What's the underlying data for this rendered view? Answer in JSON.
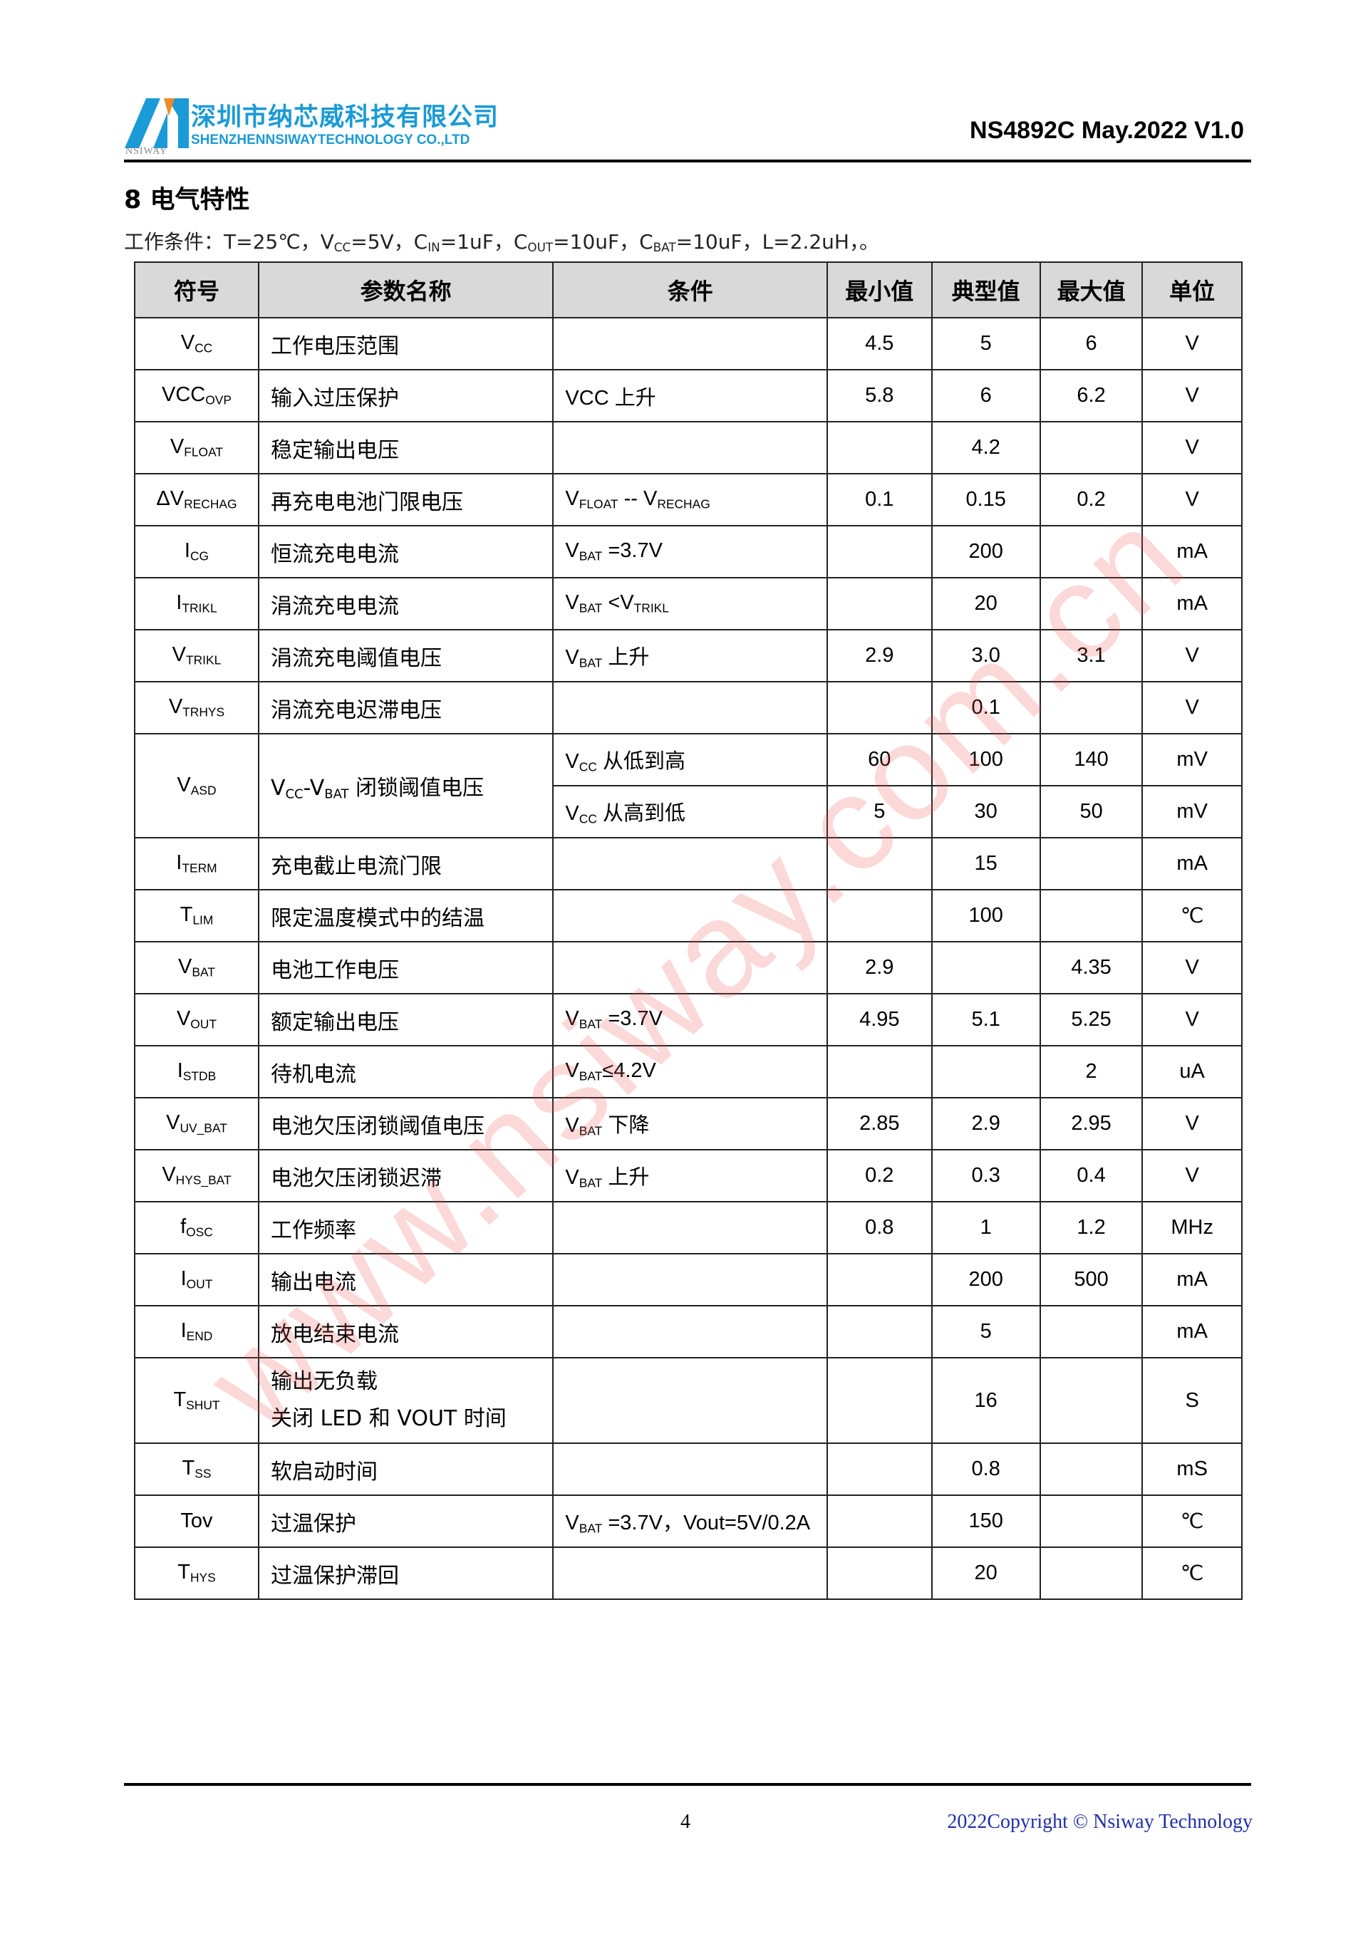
{
  "header": {
    "company_cn": "深圳市纳芯威科技有限公司",
    "company_en": "SHENZHENNSIWAYTECHNOLOGY CO.,LTD",
    "logo_text": "NSIWAY",
    "doc_id": "NS4892C May.2022 V1.0"
  },
  "section": {
    "title": "8 电气特性",
    "conditions_prefix": "工作条件：T=25℃，V",
    "conditions_parts": [
      {
        "t": "工作条件：T=25℃，V"
      },
      {
        "s": "CC"
      },
      {
        "t": "=5V，C"
      },
      {
        "s": "IN"
      },
      {
        "t": "=1uF，C"
      },
      {
        "s": "OUT"
      },
      {
        "t": "=10uF，C"
      },
      {
        "s": "BAT"
      },
      {
        "t": "=10uF，L=2.2uH，。"
      }
    ]
  },
  "table": {
    "headers": [
      "符号",
      "参数名称",
      "条件",
      "最小值",
      "典型值",
      "最大值",
      "单位"
    ],
    "rows": [
      {
        "sym": [
          {
            "t": "V"
          },
          {
            "s": "CC"
          }
        ],
        "name": [
          "工作电压范围"
        ],
        "cond": [],
        "min": "4.5",
        "typ": "5",
        "max": "6",
        "unit": "V"
      },
      {
        "sym": [
          {
            "t": "VCC"
          },
          {
            "s": "OVP"
          }
        ],
        "name": [
          "输入过压保护"
        ],
        "cond": [
          {
            "t": "VCC 上升"
          }
        ],
        "min": "5.8",
        "typ": "6",
        "max": "6.2",
        "unit": "V"
      },
      {
        "sym": [
          {
            "t": "V"
          },
          {
            "s": "FLOAT"
          }
        ],
        "name": [
          "稳定输出电压"
        ],
        "cond": [],
        "min": "",
        "typ": "4.2",
        "max": "",
        "unit": "V"
      },
      {
        "sym": [
          {
            "t": "ΔV"
          },
          {
            "s": "RECHAG"
          }
        ],
        "name": [
          "再充电电池门限电压"
        ],
        "cond": [
          {
            "t": "V"
          },
          {
            "s": "FLOAT"
          },
          {
            "t": " -- V"
          },
          {
            "s": "RECHAG"
          }
        ],
        "min": "0.1",
        "typ": "0.15",
        "max": "0.2",
        "unit": "V"
      },
      {
        "sym": [
          {
            "t": "I"
          },
          {
            "s": "CG"
          }
        ],
        "name": [
          "恒流充电电流"
        ],
        "cond": [
          {
            "t": "V"
          },
          {
            "s": "BAT"
          },
          {
            "t": " =3.7V"
          }
        ],
        "min": "",
        "typ": "200",
        "max": "",
        "unit": "mA"
      },
      {
        "sym": [
          {
            "t": "I"
          },
          {
            "s": "TRIKL"
          }
        ],
        "name": [
          "涓流充电电流"
        ],
        "cond": [
          {
            "t": "V"
          },
          {
            "s": "BAT"
          },
          {
            "t": " <V"
          },
          {
            "s": "TRIKL"
          }
        ],
        "min": "",
        "typ": "20",
        "max": "",
        "unit": "mA"
      },
      {
        "sym": [
          {
            "t": "V"
          },
          {
            "s": "TRIKL"
          }
        ],
        "name": [
          "涓流充电阈值电压"
        ],
        "cond": [
          {
            "t": "V"
          },
          {
            "s": "BAT"
          },
          {
            "t": " 上升"
          }
        ],
        "min": "2.9",
        "typ": "3.0",
        "max": "3.1",
        "unit": "V"
      },
      {
        "sym": [
          {
            "t": "V"
          },
          {
            "s": "TRHYS"
          }
        ],
        "name": [
          "涓流充电迟滞电压"
        ],
        "cond": [],
        "min": "",
        "typ": "0.1",
        "max": "",
        "unit": "V"
      },
      {
        "sym": [
          {
            "t": "V"
          },
          {
            "s": "ASD"
          }
        ],
        "name_parts": [
          {
            "t": "V"
          },
          {
            "s": "CC"
          },
          {
            "t": "-V"
          },
          {
            "s": "BAT"
          },
          {
            "t": " 闭锁阈值电压"
          }
        ],
        "sub_rows": [
          {
            "cond": [
              {
                "t": "V"
              },
              {
                "s": "CC"
              },
              {
                "t": " 从低到高"
              }
            ],
            "min": "60",
            "typ": "100",
            "max": "140",
            "unit": "mV"
          },
          {
            "cond": [
              {
                "t": "V"
              },
              {
                "s": "CC"
              },
              {
                "t": " 从高到低"
              }
            ],
            "min": "5",
            "typ": "30",
            "max": "50",
            "unit": "mV"
          }
        ]
      },
      {
        "sym": [
          {
            "t": "I"
          },
          {
            "s": "TERM"
          }
        ],
        "name": [
          "充电截止电流门限"
        ],
        "cond": [],
        "min": "",
        "typ": "15",
        "max": "",
        "unit": "mA"
      },
      {
        "sym": [
          {
            "t": "T"
          },
          {
            "s": "LIM"
          }
        ],
        "name": [
          "限定温度模式中的结温"
        ],
        "cond": [],
        "min": "",
        "typ": "100",
        "max": "",
        "unit": "℃"
      },
      {
        "sym": [
          {
            "t": "V"
          },
          {
            "s": "BAT"
          }
        ],
        "name": [
          "电池工作电压"
        ],
        "cond": [],
        "min": "2.9",
        "typ": "",
        "max": "4.35",
        "unit": "V"
      },
      {
        "sym": [
          {
            "t": "V"
          },
          {
            "s": "OUT"
          }
        ],
        "name": [
          "额定输出电压"
        ],
        "cond": [
          {
            "t": "V"
          },
          {
            "s": "BAT"
          },
          {
            "t": " =3.7V"
          }
        ],
        "min": "4.95",
        "typ": "5.1",
        "max": "5.25",
        "unit": "V"
      },
      {
        "sym": [
          {
            "t": "I"
          },
          {
            "s": "STDB"
          }
        ],
        "name": [
          "待机电流"
        ],
        "cond": [
          {
            "t": "V"
          },
          {
            "s": "BAT"
          },
          {
            "t": "≤4.2V"
          }
        ],
        "min": "",
        "typ": "",
        "max": "2",
        "unit": "uA"
      },
      {
        "sym": [
          {
            "t": "V"
          },
          {
            "s": "UV_BAT"
          }
        ],
        "name": [
          "电池欠压闭锁阈值电压"
        ],
        "cond": [
          {
            "t": "V"
          },
          {
            "s": "BAT"
          },
          {
            "t": " 下降"
          }
        ],
        "min": "2.85",
        "typ": "2.9",
        "max": "2.95",
        "unit": "V"
      },
      {
        "sym": [
          {
            "t": "V"
          },
          {
            "s": "HYS_BAT"
          }
        ],
        "name": [
          "电池欠压闭锁迟滞"
        ],
        "cond": [
          {
            "t": "V"
          },
          {
            "s": "BAT"
          },
          {
            "t": " 上升"
          }
        ],
        "min": "0.2",
        "typ": "0.3",
        "max": "0.4",
        "unit": "V"
      },
      {
        "sym": [
          {
            "t": "f"
          },
          {
            "s": "OSC"
          }
        ],
        "name": [
          "工作频率"
        ],
        "cond": [],
        "min": "0.8",
        "typ": "1",
        "max": "1.2",
        "unit": "MHz"
      },
      {
        "sym": [
          {
            "t": "I"
          },
          {
            "s": "OUT"
          }
        ],
        "name": [
          "输出电流"
        ],
        "cond": [],
        "min": "",
        "typ": "200",
        "max": "500",
        "unit": "mA"
      },
      {
        "sym": [
          {
            "t": "I"
          },
          {
            "s": "END"
          }
        ],
        "name": [
          "放电结束电流"
        ],
        "cond": [],
        "min": "",
        "typ": "5",
        "max": "",
        "unit": "mA"
      },
      {
        "sym": [
          {
            "t": "T"
          },
          {
            "s": "SHUT"
          }
        ],
        "name": [
          "输出无负载",
          "关闭 LED 和 VOUT 时间"
        ],
        "cond": [],
        "min": "",
        "typ": "16",
        "max": "",
        "unit": "S"
      },
      {
        "sym": [
          {
            "t": "T"
          },
          {
            "s": "SS"
          }
        ],
        "name": [
          "软启动时间"
        ],
        "cond": [],
        "min": "",
        "typ": "0.8",
        "max": "",
        "unit": "mS"
      },
      {
        "sym": [
          {
            "t": "Tov"
          }
        ],
        "name": [
          "过温保护"
        ],
        "cond": [
          {
            "t": "V"
          },
          {
            "s": "BAT"
          },
          {
            "t": " =3.7V，Vout=5V/0.2A"
          }
        ],
        "min": "",
        "typ": "150",
        "max": "",
        "unit": "℃"
      },
      {
        "sym": [
          {
            "t": "T"
          },
          {
            "s": "HYS"
          }
        ],
        "name": [
          "过温保护滞回"
        ],
        "cond": [],
        "min": "",
        "typ": "20",
        "max": "",
        "unit": "℃"
      }
    ]
  },
  "watermark": "www.nsiway.com.cn",
  "footer": {
    "page_number": "4",
    "copyright": "2022Copyright © Nsiway Technology"
  },
  "colors": {
    "brand": "#1a9ad6",
    "watermark": "#eb5050",
    "copyright": "#1f2fa8",
    "header_bg": "#d9d9d9"
  }
}
